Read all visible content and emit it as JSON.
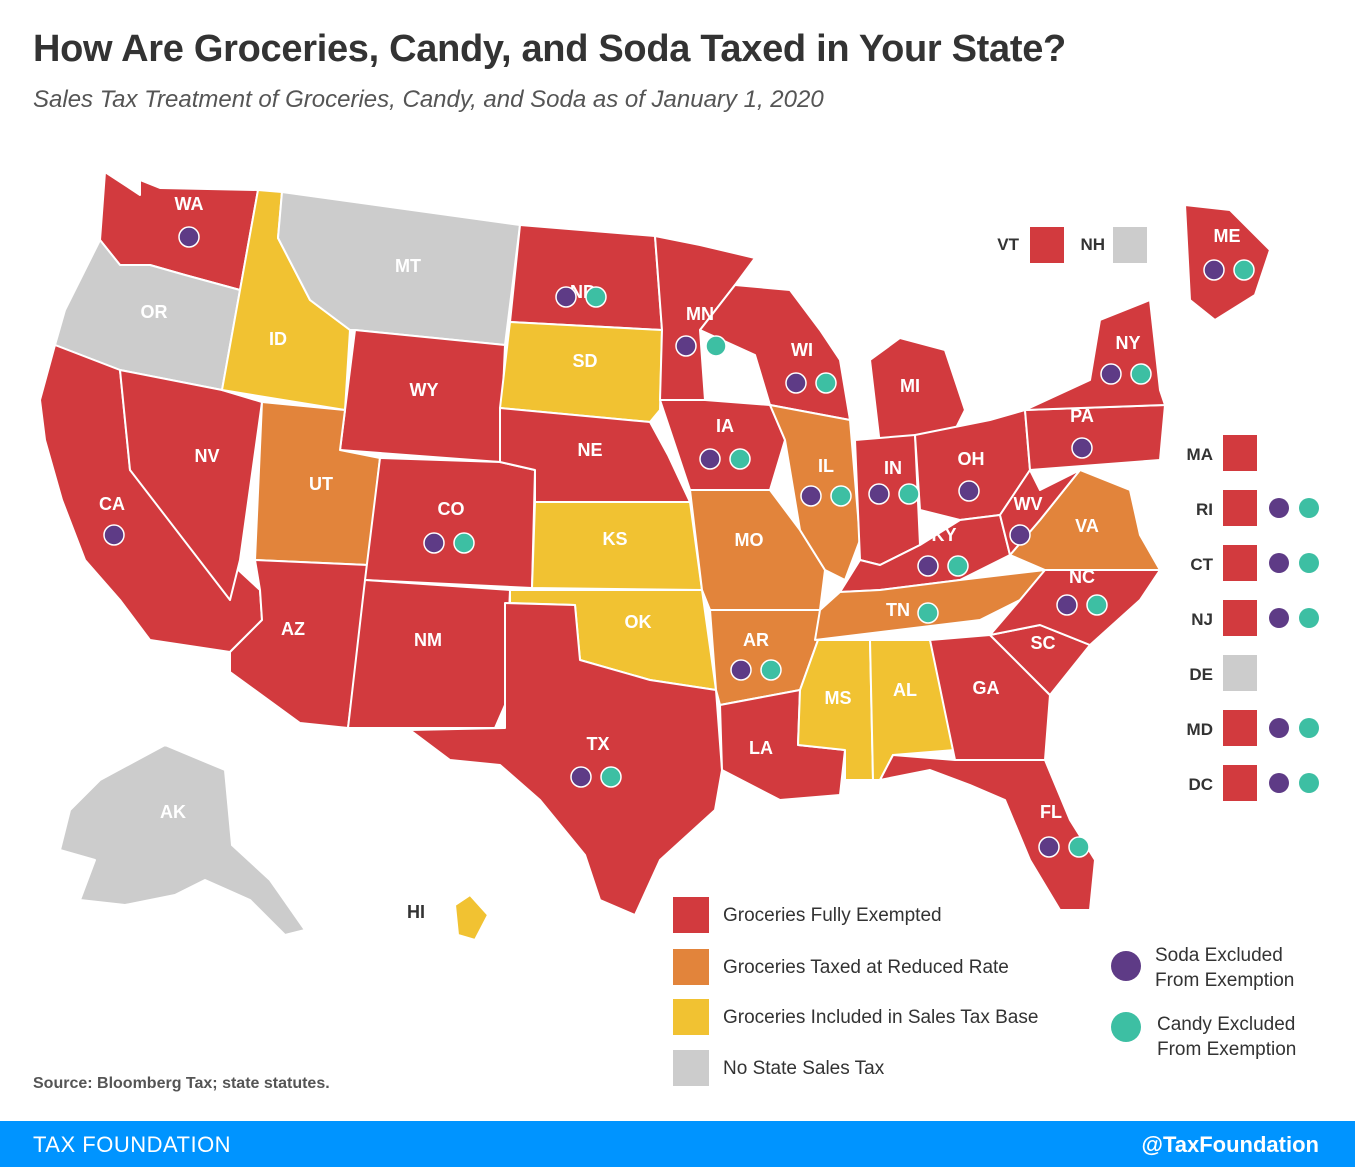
{
  "header": {
    "title": "How Are Groceries, Candy, and Soda Taxed in Your State?",
    "subtitle": "Sales Tax Treatment of Groceries, Candy, and Soda as of January 1, 2020"
  },
  "colors": {
    "exempt": "#d23a3e",
    "reduced": "#e2843b",
    "included": "#f1c232",
    "none": "#cccccc",
    "soda": "#5e3b86",
    "candy": "#3dbfa3"
  },
  "states": [
    {
      "abbr": "WA",
      "category": "exempt",
      "soda": true,
      "candy": false
    },
    {
      "abbr": "OR",
      "category": "none",
      "soda": false,
      "candy": false
    },
    {
      "abbr": "CA",
      "category": "exempt",
      "soda": true,
      "candy": false
    },
    {
      "abbr": "NV",
      "category": "exempt",
      "soda": false,
      "candy": false
    },
    {
      "abbr": "ID",
      "category": "included",
      "soda": false,
      "candy": false
    },
    {
      "abbr": "MT",
      "category": "none",
      "soda": false,
      "candy": false
    },
    {
      "abbr": "WY",
      "category": "exempt",
      "soda": false,
      "candy": false
    },
    {
      "abbr": "UT",
      "category": "reduced",
      "soda": false,
      "candy": false
    },
    {
      "abbr": "AZ",
      "category": "exempt",
      "soda": false,
      "candy": false
    },
    {
      "abbr": "CO",
      "category": "exempt",
      "soda": true,
      "candy": true
    },
    {
      "abbr": "NM",
      "category": "exempt",
      "soda": false,
      "candy": false
    },
    {
      "abbr": "ND",
      "category": "exempt",
      "soda": true,
      "candy": true
    },
    {
      "abbr": "SD",
      "category": "included",
      "soda": false,
      "candy": false
    },
    {
      "abbr": "NE",
      "category": "exempt",
      "soda": false,
      "candy": false
    },
    {
      "abbr": "KS",
      "category": "included",
      "soda": false,
      "candy": false
    },
    {
      "abbr": "OK",
      "category": "included",
      "soda": false,
      "candy": false
    },
    {
      "abbr": "TX",
      "category": "exempt",
      "soda": true,
      "candy": true
    },
    {
      "abbr": "MN",
      "category": "exempt",
      "soda": true,
      "candy": true
    },
    {
      "abbr": "IA",
      "category": "exempt",
      "soda": true,
      "candy": true
    },
    {
      "abbr": "MO",
      "category": "reduced",
      "soda": false,
      "candy": false
    },
    {
      "abbr": "AR",
      "category": "reduced",
      "soda": true,
      "candy": true
    },
    {
      "abbr": "LA",
      "category": "exempt",
      "soda": false,
      "candy": false
    },
    {
      "abbr": "WI",
      "category": "exempt",
      "soda": true,
      "candy": true
    },
    {
      "abbr": "IL",
      "category": "reduced",
      "soda": true,
      "candy": true
    },
    {
      "abbr": "MI",
      "category": "exempt",
      "soda": false,
      "candy": false
    },
    {
      "abbr": "IN",
      "category": "exempt",
      "soda": true,
      "candy": true
    },
    {
      "abbr": "OH",
      "category": "exempt",
      "soda": true,
      "candy": false
    },
    {
      "abbr": "KY",
      "category": "exempt",
      "soda": true,
      "candy": true
    },
    {
      "abbr": "TN",
      "category": "reduced",
      "soda": false,
      "candy": true
    },
    {
      "abbr": "MS",
      "category": "included",
      "soda": false,
      "candy": false
    },
    {
      "abbr": "AL",
      "category": "included",
      "soda": false,
      "candy": false
    },
    {
      "abbr": "GA",
      "category": "exempt",
      "soda": false,
      "candy": false
    },
    {
      "abbr": "FL",
      "category": "exempt",
      "soda": true,
      "candy": true
    },
    {
      "abbr": "SC",
      "category": "exempt",
      "soda": false,
      "candy": false
    },
    {
      "abbr": "NC",
      "category": "exempt",
      "soda": true,
      "candy": true
    },
    {
      "abbr": "VA",
      "category": "reduced",
      "soda": false,
      "candy": false
    },
    {
      "abbr": "WV",
      "category": "exempt",
      "soda": true,
      "candy": false
    },
    {
      "abbr": "PA",
      "category": "exempt",
      "soda": true,
      "candy": false
    },
    {
      "abbr": "NY",
      "category": "exempt",
      "soda": true,
      "candy": true
    },
    {
      "abbr": "ME",
      "category": "exempt",
      "soda": true,
      "candy": true
    },
    {
      "abbr": "AK",
      "category": "none",
      "soda": false,
      "candy": false
    },
    {
      "abbr": "HI",
      "category": "included",
      "soda": false,
      "candy": false
    }
  ],
  "small_states": [
    {
      "abbr": "VT",
      "category": "exempt",
      "soda": false,
      "candy": false
    },
    {
      "abbr": "NH",
      "category": "none",
      "soda": false,
      "candy": false
    },
    {
      "abbr": "MA",
      "category": "exempt",
      "soda": false,
      "candy": false
    },
    {
      "abbr": "RI",
      "category": "exempt",
      "soda": true,
      "candy": true
    },
    {
      "abbr": "CT",
      "category": "exempt",
      "soda": true,
      "candy": true
    },
    {
      "abbr": "NJ",
      "category": "exempt",
      "soda": true,
      "candy": true
    },
    {
      "abbr": "DE",
      "category": "none",
      "soda": false,
      "candy": false
    },
    {
      "abbr": "MD",
      "category": "exempt",
      "soda": true,
      "candy": true
    },
    {
      "abbr": "DC",
      "category": "exempt",
      "soda": true,
      "candy": true
    }
  ],
  "legend": {
    "exempt": "Groceries Fully Exempted",
    "reduced": "Groceries Taxed at Reduced Rate",
    "included": "Groceries Included in Sales Tax Base",
    "none": "No State Sales Tax",
    "soda_line1": "Soda Excluded",
    "soda_line2": "From Exemption",
    "candy_line1": "Candy Excluded",
    "candy_line2": "From Exemption"
  },
  "source": "Source: Bloomberg Tax; state statutes.",
  "footer": {
    "brand": "TAX FOUNDATION",
    "handle": "@TaxFoundation"
  }
}
